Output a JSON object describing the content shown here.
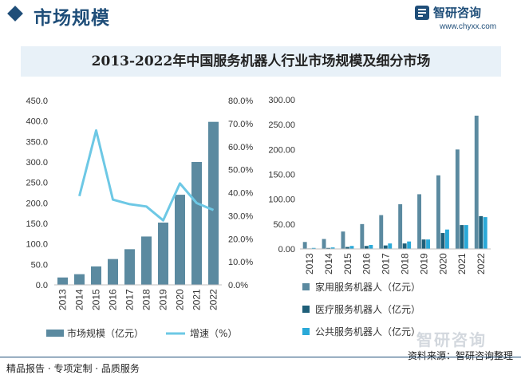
{
  "header": {
    "title": "市场规模"
  },
  "brand": {
    "name": "智研咨询",
    "url": "www.chyxx.com"
  },
  "footer": {
    "left": "精品报告 · 专项定制 · 品质服务",
    "source": "资料来源：智研咨询整理",
    "logo_text": "智研咨询"
  },
  "colors": {
    "bar": "#5b8aa0",
    "line": "#6dc8e5",
    "home": "#5b8aa0",
    "medical": "#1f5f79",
    "public": "#2aa9d8"
  },
  "chart_title": "2013-2022年中国服务机器人行业市场规模及细分市场",
  "chart_data": [
    {
      "type": "bar",
      "categories": [
        "2013",
        "2014",
        "2015",
        "2016",
        "2017",
        "2018",
        "2019",
        "2020",
        "2021",
        "2022"
      ],
      "series": [
        {
          "name": "市场规模（亿元）",
          "type": "bar",
          "axis": "left",
          "values": [
            18,
            26,
            45,
            63,
            87,
            118,
            152,
            220,
            300,
            398
          ]
        },
        {
          "name": "增速（%）",
          "type": "line",
          "axis": "right",
          "values": [
            null,
            38.5,
            67.0,
            37.0,
            35.0,
            34.0,
            28.0,
            44.0,
            35.5,
            32.5
          ]
        }
      ],
      "ylim_left": [
        0,
        450
      ],
      "yticks_left": [
        "0.0",
        "50.0",
        "100.0",
        "150.0",
        "200.0",
        "250.0",
        "300.0",
        "350.0",
        "400.0",
        "450.0"
      ],
      "ylim_right": [
        0,
        80
      ],
      "yticks_right": [
        "0.0%",
        "10.0%",
        "20.0%",
        "30.0%",
        "40.0%",
        "50.0%",
        "60.0%",
        "70.0%",
        "80.0%"
      ],
      "legend": [
        "市场规模（亿元）",
        "增速（%）"
      ],
      "legend_position": "bottom"
    },
    {
      "type": "bar",
      "categories": [
        "2013",
        "2014",
        "2015",
        "2016",
        "2017",
        "2018",
        "2019",
        "2020",
        "2021",
        "2022"
      ],
      "series": [
        {
          "name": "家用服务机器人（亿元）",
          "values": [
            14,
            20,
            35,
            50,
            68,
            90,
            110,
            148,
            200,
            268
          ]
        },
        {
          "name": "医疗服务机器人（亿元）",
          "values": [
            1,
            2,
            4,
            6,
            7,
            11,
            19,
            32,
            48,
            66
          ]
        },
        {
          "name": "公共服务机器人（亿元）",
          "values": [
            2,
            3,
            6,
            8,
            11,
            15,
            19,
            39,
            48,
            64
          ]
        }
      ],
      "ylim": [
        0,
        300
      ],
      "yticks": [
        "0.00",
        "50.00",
        "100.00",
        "150.00",
        "200.00",
        "250.00",
        "300.00"
      ],
      "legend": [
        "家用服务机器人（亿元）",
        "医疗服务机器人（亿元）",
        "公共服务机器人（亿元）"
      ],
      "legend_position": "bottom"
    }
  ]
}
